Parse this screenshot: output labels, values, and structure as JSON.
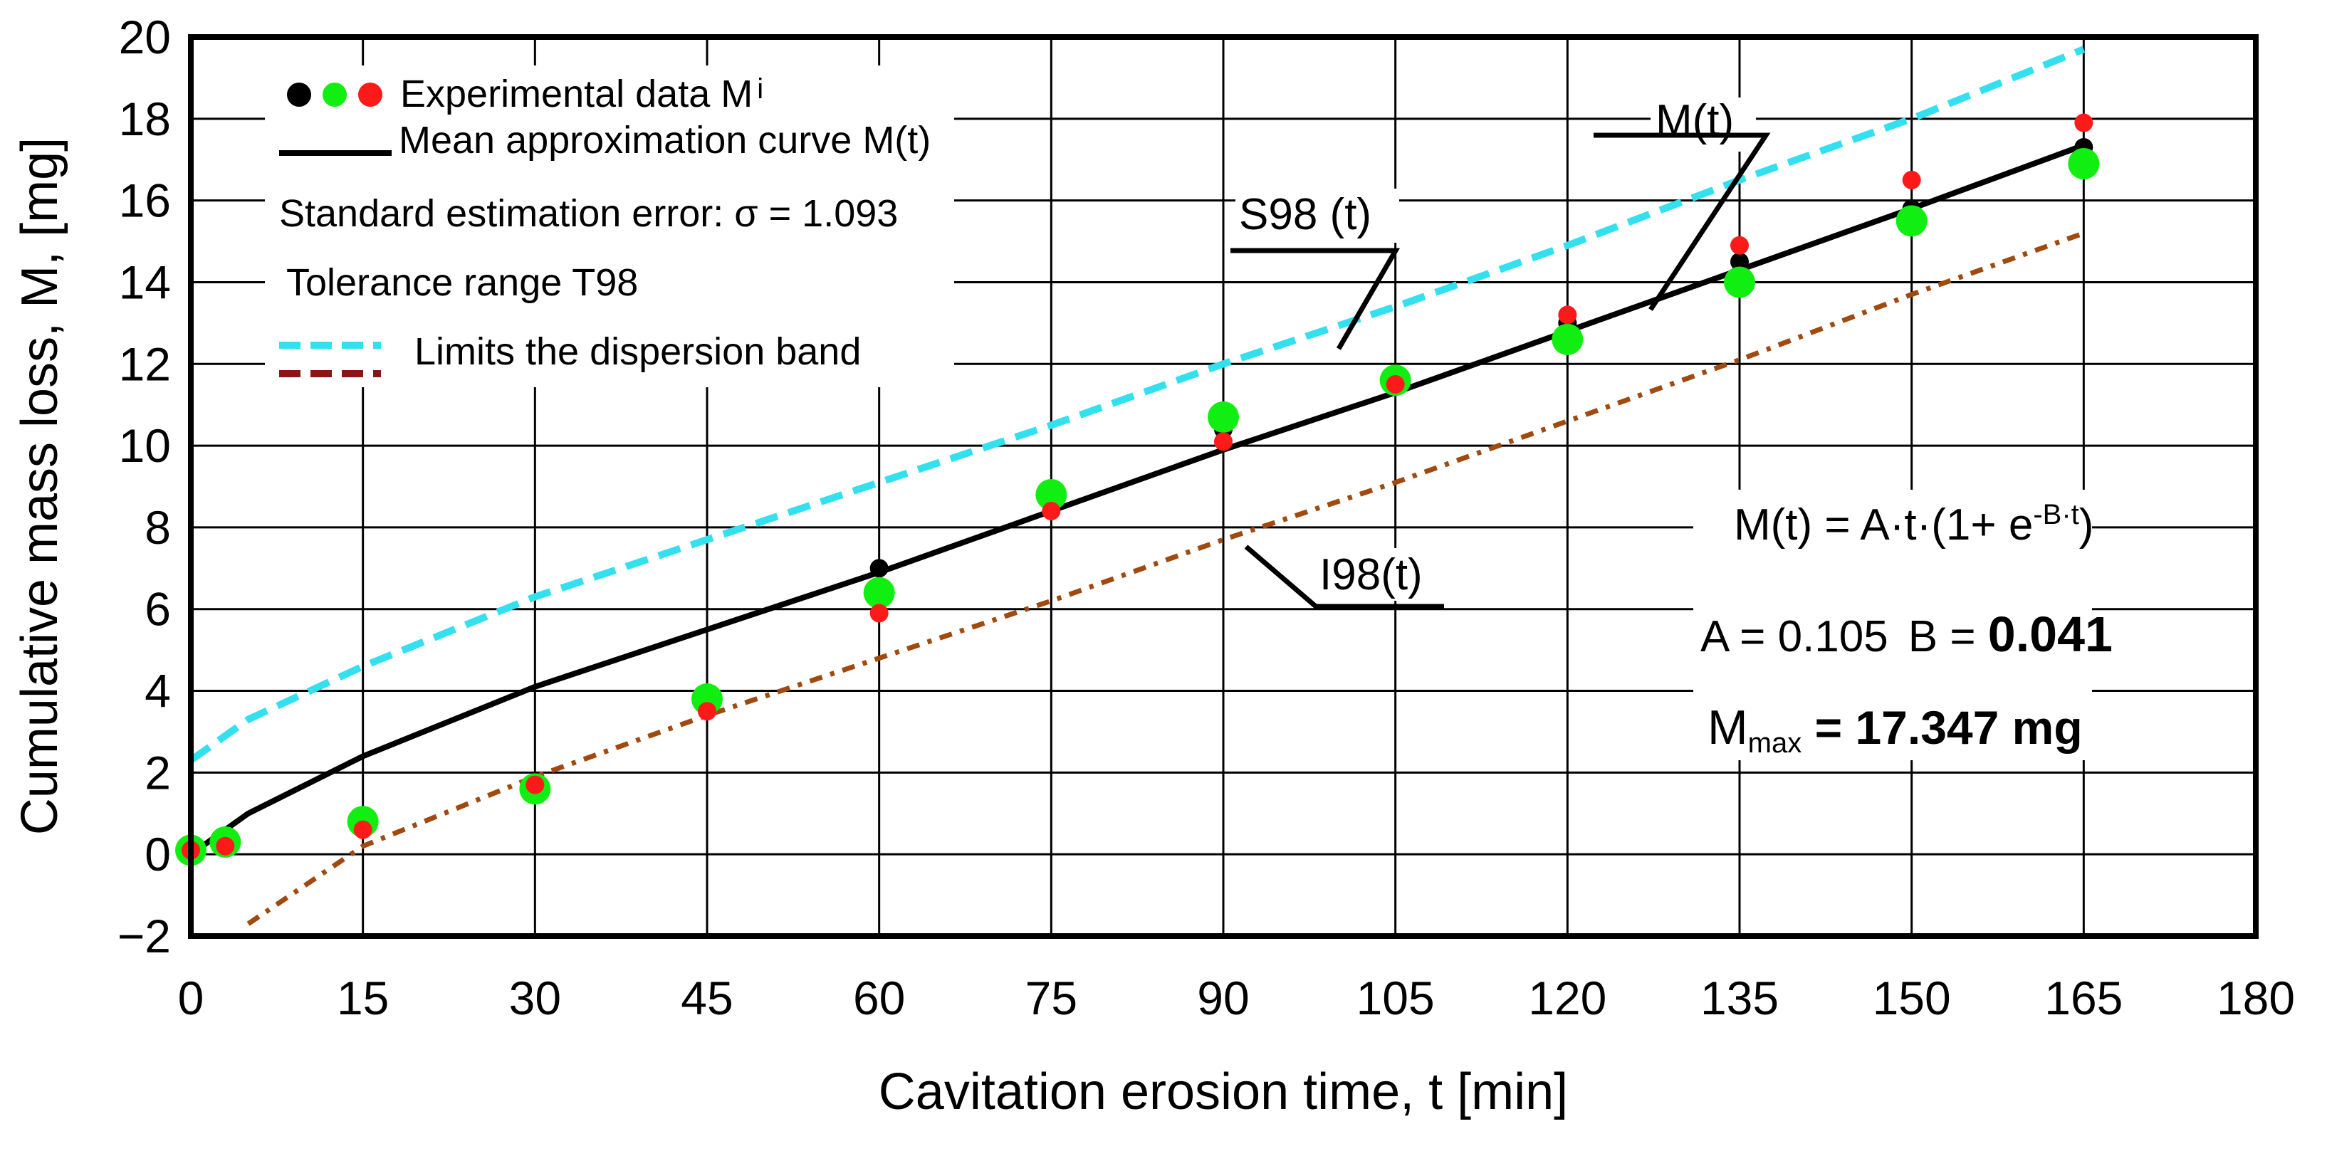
{
  "chart_data": {
    "type": "scatter",
    "title": "",
    "xlabel": "Cavitation erosion time, t [min]",
    "ylabel": "Cumulative mass loss, M, [mg]",
    "xlim": [
      0,
      180
    ],
    "ylim": [
      -2,
      20
    ],
    "xticks": [
      0,
      15,
      30,
      45,
      60,
      75,
      90,
      105,
      120,
      135,
      150,
      165,
      180
    ],
    "yticks": [
      -2,
      0,
      2,
      4,
      6,
      8,
      10,
      12,
      14,
      16,
      18,
      20
    ],
    "grid": true,
    "legend_position": "top-left",
    "series": [
      {
        "name": "Experimental data M_i (black)",
        "kind": "points",
        "color": "#000000",
        "x": [
          0,
          3,
          15,
          30,
          45,
          60,
          75,
          90,
          105,
          120,
          135,
          150,
          165
        ],
        "y": [
          0.1,
          0.3,
          0.9,
          1.5,
          3.8,
          7.0,
          8.8,
          10.4,
          11.7,
          13.0,
          14.5,
          15.8,
          17.3
        ]
      },
      {
        "name": "Experimental data M_i (green)",
        "kind": "points",
        "color": "#11ee11",
        "x": [
          0,
          3,
          15,
          30,
          45,
          60,
          75,
          90,
          105,
          120,
          135,
          150,
          165
        ],
        "y": [
          0.1,
          0.3,
          0.8,
          1.6,
          3.8,
          6.4,
          8.8,
          10.7,
          11.6,
          12.6,
          14.0,
          15.5,
          16.9
        ]
      },
      {
        "name": "Experimental data M_i (red)",
        "kind": "points",
        "color": "#ff1a1a",
        "x": [
          0,
          3,
          15,
          30,
          45,
          60,
          75,
          90,
          105,
          120,
          135,
          150,
          165
        ],
        "y": [
          0.1,
          0.2,
          0.6,
          1.7,
          3.5,
          5.9,
          8.4,
          10.1,
          11.5,
          13.2,
          14.9,
          16.5,
          17.9
        ]
      },
      {
        "name": "Mean approximation curve M(t)",
        "kind": "line",
        "color": "#000000",
        "x": [
          0,
          5,
          15,
          30,
          45,
          60,
          75,
          90,
          105,
          120,
          135,
          150,
          165
        ],
        "y": [
          0.0,
          1.0,
          2.4,
          4.1,
          5.5,
          6.9,
          8.4,
          9.9,
          11.3,
          12.8,
          14.3,
          15.8,
          17.35
        ]
      },
      {
        "name": "S98(t) upper limit",
        "kind": "dashed",
        "color": "#33e0f0",
        "x": [
          0,
          5,
          15,
          30,
          45,
          60,
          75,
          90,
          105,
          120,
          135,
          150,
          165
        ],
        "y": [
          2.3,
          3.3,
          4.6,
          6.3,
          7.7,
          9.1,
          10.5,
          12.0,
          13.4,
          14.9,
          16.5,
          18.0,
          19.7
        ]
      },
      {
        "name": "I98(t) lower limit",
        "kind": "dashdot",
        "color": "#a04a10",
        "x": [
          5,
          15,
          30,
          45,
          60,
          75,
          90,
          105,
          120,
          135,
          150,
          165
        ],
        "y": [
          -1.7,
          0.2,
          1.9,
          3.4,
          4.8,
          6.2,
          7.7,
          9.1,
          10.6,
          12.1,
          13.7,
          15.2
        ]
      }
    ],
    "legend": {
      "experimental": "Experimental data M",
      "experimental_sub": "i",
      "mean_curve": "Mean approximation curve M(t)",
      "sigma": "Standard estimation error: σ = 1.093",
      "tolerance": "Tolerance range T98",
      "limits": "Limits the dispersion band"
    },
    "annotations": {
      "mt_label": "M(t)",
      "s98_label": "S98 (t)",
      "i98_label": "I98(t)",
      "eq_main": "M(t) = A·t·(1+ e",
      "eq_exp": "-B·t",
      "eq_close": ")",
      "a_text": "A = 0.105",
      "b_text": "B = ",
      "b_value": "0.041",
      "mmax_m": "M",
      "mmax_sub": "max",
      "mmax_value": " = 17.347 mg"
    },
    "colors": {
      "black": "#000000",
      "green": "#11ee11",
      "red": "#ff1a1a",
      "cyan": "#33e0f0",
      "brown": "#a04a10",
      "darkred": "#8b1515"
    }
  }
}
